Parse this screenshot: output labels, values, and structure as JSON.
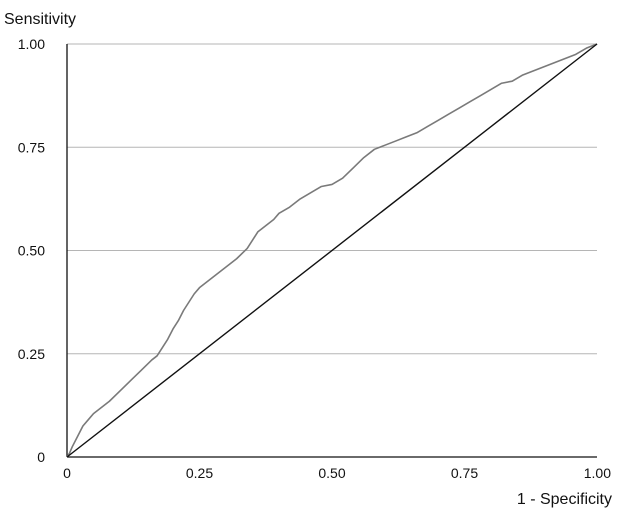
{
  "chart_data": {
    "type": "line",
    "title": "",
    "xlabel": "1 - Specificity",
    "ylabel": "Sensitivity",
    "xlim": [
      0,
      1
    ],
    "ylim": [
      0,
      1
    ],
    "x_ticks": [
      0,
      0.25,
      0.5,
      0.75,
      1.0
    ],
    "x_tick_labels": [
      "0",
      "0.25",
      "0.50",
      "0.75",
      "1.00"
    ],
    "y_ticks": [
      0,
      0.25,
      0.5,
      0.75,
      1.0
    ],
    "y_tick_labels": [
      "0",
      "0.25",
      "0.50",
      "0.75",
      "1.00"
    ],
    "grid": "horizontal",
    "legend": "none",
    "series": [
      {
        "color": "#7a7a7a",
        "x": [
          0,
          0.005,
          0.01,
          0.02,
          0.03,
          0.04,
          0.05,
          0.06,
          0.08,
          0.1,
          0.12,
          0.14,
          0.16,
          0.17,
          0.18,
          0.19,
          0.2,
          0.21,
          0.22,
          0.23,
          0.24,
          0.25,
          0.27,
          0.28,
          0.3,
          0.32,
          0.34,
          0.35,
          0.36,
          0.37,
          0.38,
          0.39,
          0.4,
          0.42,
          0.44,
          0.46,
          0.48,
          0.5,
          0.52,
          0.54,
          0.56,
          0.58,
          0.6,
          0.62,
          0.64,
          0.66,
          0.68,
          0.7,
          0.72,
          0.74,
          0.76,
          0.78,
          0.8,
          0.82,
          0.84,
          0.86,
          0.88,
          0.9,
          0.92,
          0.94,
          0.96,
          0.98,
          1.0
        ],
        "y": [
          0,
          0.01,
          0.025,
          0.05,
          0.075,
          0.09,
          0.105,
          0.115,
          0.135,
          0.16,
          0.185,
          0.21,
          0.235,
          0.245,
          0.265,
          0.285,
          0.31,
          0.33,
          0.355,
          0.375,
          0.395,
          0.41,
          0.43,
          0.44,
          0.46,
          0.48,
          0.505,
          0.525,
          0.545,
          0.555,
          0.565,
          0.575,
          0.59,
          0.605,
          0.625,
          0.64,
          0.655,
          0.66,
          0.675,
          0.7,
          0.725,
          0.745,
          0.755,
          0.765,
          0.775,
          0.785,
          0.8,
          0.815,
          0.83,
          0.845,
          0.86,
          0.875,
          0.89,
          0.905,
          0.91,
          0.925,
          0.935,
          0.945,
          0.955,
          0.965,
          0.975,
          0.99,
          1.0
        ]
      },
      {
        "color": "#111111",
        "x": [
          0,
          1
        ],
        "y": [
          0,
          1
        ]
      }
    ]
  }
}
